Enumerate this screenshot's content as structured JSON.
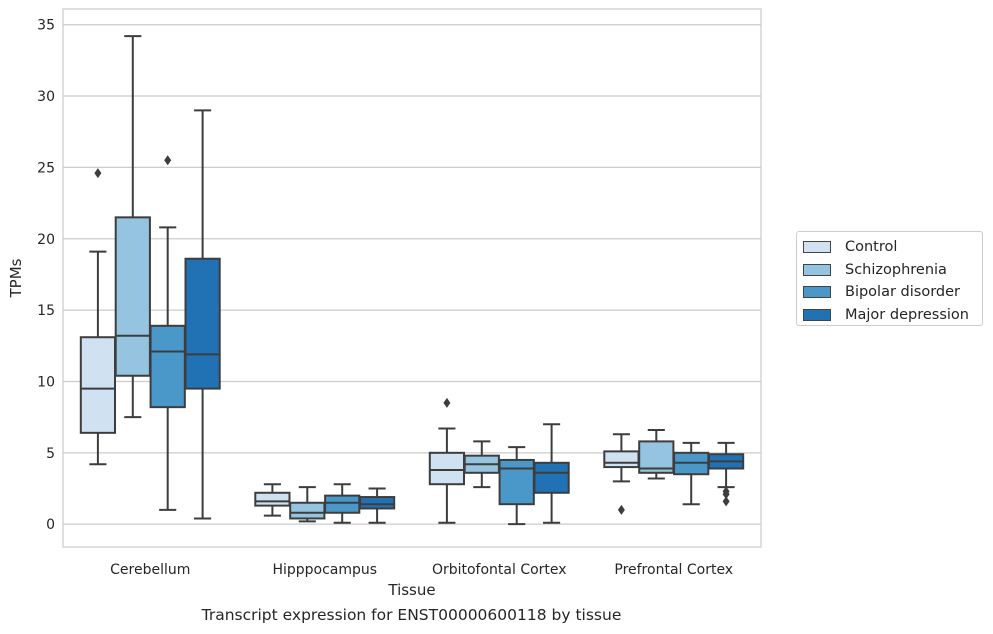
{
  "chart_data": {
    "type": "box",
    "xlabel": "Tissue",
    "ylabel": "TPMs",
    "ylim": [
      -1.6,
      36.1
    ],
    "yticks": [
      0,
      5,
      10,
      15,
      20,
      25,
      30,
      35
    ],
    "grid": "horizontal",
    "legend_position": "right",
    "categories": [
      "Cerebellum",
      "Hipppocampus",
      "Orbitofontal Cortex",
      "Prefrontal Cortex"
    ],
    "series": [
      {
        "name": "Control",
        "color": "#d0e1f2",
        "boxes": [
          {
            "whislo": 4.2,
            "q1": 6.4,
            "med": 9.5,
            "q3": 13.1,
            "whishi": 19.1,
            "fliers": [
              24.6
            ]
          },
          {
            "whislo": 0.6,
            "q1": 1.3,
            "med": 1.6,
            "q3": 2.2,
            "whishi": 2.8,
            "fliers": []
          },
          {
            "whislo": 0.1,
            "q1": 2.8,
            "med": 3.8,
            "q3": 5.0,
            "whishi": 6.7,
            "fliers": [
              8.5
            ]
          },
          {
            "whislo": 3.0,
            "q1": 4.0,
            "med": 4.3,
            "q3": 5.1,
            "whishi": 6.3,
            "fliers": [
              1.0
            ]
          }
        ]
      },
      {
        "name": "Schizophrenia",
        "color": "#94c4df",
        "boxes": [
          {
            "whislo": 7.5,
            "q1": 10.4,
            "med": 13.2,
            "q3": 21.5,
            "whishi": 34.2,
            "fliers": []
          },
          {
            "whislo": 0.2,
            "q1": 0.4,
            "med": 0.8,
            "q3": 1.5,
            "whishi": 2.6,
            "fliers": []
          },
          {
            "whislo": 2.6,
            "q1": 3.6,
            "med": 4.2,
            "q3": 4.8,
            "whishi": 5.8,
            "fliers": []
          },
          {
            "whislo": 3.2,
            "q1": 3.6,
            "med": 3.9,
            "q3": 5.8,
            "whishi": 6.6,
            "fliers": []
          }
        ]
      },
      {
        "name": "Bipolar disorder",
        "color": "#4a98c9",
        "boxes": [
          {
            "whislo": 1.0,
            "q1": 8.2,
            "med": 12.1,
            "q3": 13.9,
            "whishi": 20.8,
            "fliers": [
              25.5
            ]
          },
          {
            "whislo": 0.1,
            "q1": 0.8,
            "med": 1.5,
            "q3": 2.0,
            "whishi": 2.8,
            "fliers": []
          },
          {
            "whislo": 0.0,
            "q1": 1.4,
            "med": 3.9,
            "q3": 4.5,
            "whishi": 5.4,
            "fliers": []
          },
          {
            "whislo": 1.4,
            "q1": 3.5,
            "med": 4.3,
            "q3": 5.0,
            "whishi": 5.7,
            "fliers": []
          }
        ]
      },
      {
        "name": "Major depression",
        "color": "#2171b5",
        "boxes": [
          {
            "whislo": 0.4,
            "q1": 9.5,
            "med": 11.9,
            "q3": 18.6,
            "whishi": 29.0,
            "fliers": []
          },
          {
            "whislo": 0.1,
            "q1": 1.1,
            "med": 1.4,
            "q3": 1.9,
            "whishi": 2.5,
            "fliers": []
          },
          {
            "whislo": 0.1,
            "q1": 2.2,
            "med": 3.6,
            "q3": 4.3,
            "whishi": 7.0,
            "fliers": []
          },
          {
            "whislo": 2.6,
            "q1": 3.9,
            "med": 4.4,
            "q3": 4.9,
            "whishi": 5.7,
            "fliers": [
              1.6,
              2.1,
              2.3
            ]
          }
        ]
      }
    ]
  },
  "caption": "Transcript expression for ENST00000600118 by tissue"
}
